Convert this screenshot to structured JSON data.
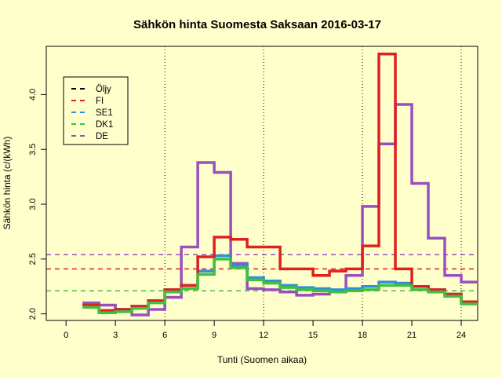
{
  "chart_data": {
    "type": "line",
    "title": "Sähkön hinta Suomesta Saksaan 2016-03-17",
    "xlabel": "Tunti (Suomen aikaa)",
    "ylabel": "Sähkön hinta (c/(kWh)",
    "xlim": [
      -1.2,
      25
    ],
    "ylim": [
      1.94,
      4.44
    ],
    "xticks": [
      0,
      3,
      6,
      9,
      12,
      15,
      18,
      21,
      24
    ],
    "xtick_labels": [
      "0",
      "3",
      "6",
      "9",
      "12",
      "15",
      "18",
      "21",
      "24"
    ],
    "yticks": [
      2.0,
      2.5,
      3.0,
      3.5,
      4.0
    ],
    "ytick_labels": [
      "2.0",
      "2.5",
      "3.0",
      "3.5",
      "4.0"
    ],
    "vlines": [
      6,
      12,
      18,
      24
    ],
    "legend_position": "top-left",
    "colors": {
      "background": "#ffffcc",
      "Öljy": "#000000",
      "FI": "#df2020",
      "SE1": "#2f8fd8",
      "DK1": "#40c040",
      "DE": "#9a4fbf"
    },
    "hours": [
      1,
      2,
      3,
      4,
      5,
      6,
      7,
      8,
      9,
      10,
      11,
      12,
      13,
      14,
      15,
      16,
      17,
      18,
      19,
      20,
      21,
      22,
      23,
      24,
      25
    ],
    "series": [
      {
        "name": "DE",
        "values": [
          2.1,
          2.08,
          2.04,
          1.99,
          2.04,
          2.15,
          2.61,
          3.38,
          3.29,
          2.46,
          2.23,
          2.22,
          2.2,
          2.17,
          2.18,
          2.21,
          2.35,
          2.98,
          3.55,
          3.91,
          3.19,
          2.69,
          2.35,
          2.29,
          2.29
        ]
      },
      {
        "name": "SE1",
        "values": [
          2.08,
          2.03,
          2.04,
          2.07,
          2.12,
          2.22,
          2.26,
          2.39,
          2.53,
          2.44,
          2.33,
          2.3,
          2.26,
          2.24,
          2.23,
          2.22,
          2.23,
          2.25,
          2.29,
          2.28,
          2.25,
          2.22,
          2.18,
          2.11,
          2.11
        ]
      },
      {
        "name": "FI",
        "values": [
          2.08,
          2.03,
          2.04,
          2.07,
          2.12,
          2.22,
          2.26,
          2.52,
          2.7,
          2.68,
          2.61,
          2.61,
          2.41,
          2.41,
          2.35,
          2.39,
          2.41,
          2.62,
          4.37,
          2.41,
          2.25,
          2.22,
          2.18,
          2.11,
          2.11
        ]
      },
      {
        "name": "DK1",
        "values": [
          2.06,
          2.01,
          2.02,
          2.05,
          2.1,
          2.2,
          2.23,
          2.36,
          2.5,
          2.42,
          2.31,
          2.28,
          2.24,
          2.22,
          2.21,
          2.2,
          2.21,
          2.22,
          2.26,
          2.26,
          2.22,
          2.2,
          2.16,
          2.09,
          2.09
        ]
      }
    ],
    "hlines": [
      {
        "name": "Öljy",
        "value": 2.21
      },
      {
        "name": "SE1",
        "value": 2.21
      },
      {
        "name": "DK1",
        "value": 2.21
      },
      {
        "name": "FI",
        "value": 2.41
      },
      {
        "name": "DE",
        "value": 2.54
      }
    ],
    "legend": [
      "Öljy",
      "FI",
      "SE1",
      "DK1",
      "DE"
    ]
  }
}
